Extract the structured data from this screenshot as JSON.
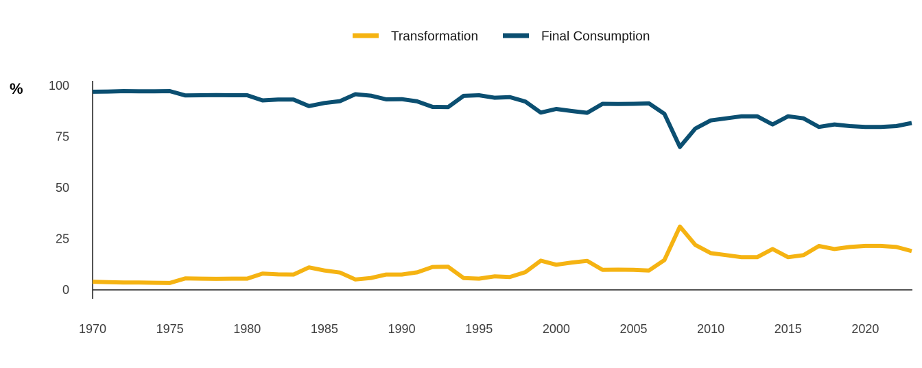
{
  "chart_data": {
    "type": "line",
    "title": "",
    "ylabel": "%",
    "xlabel": "",
    "ylim": [
      0,
      100
    ],
    "xlim": [
      1970,
      2023
    ],
    "grid": false,
    "legend_position": "top-center",
    "yticks": [
      0,
      25,
      50,
      75,
      100
    ],
    "xticks": [
      1970,
      1975,
      1980,
      1985,
      1990,
      1995,
      2000,
      2005,
      2010,
      2015,
      2020
    ],
    "x": [
      1970,
      1971,
      1972,
      1973,
      1974,
      1975,
      1976,
      1977,
      1978,
      1979,
      1980,
      1981,
      1982,
      1983,
      1984,
      1985,
      1986,
      1987,
      1988,
      1989,
      1990,
      1991,
      1992,
      1993,
      1994,
      1995,
      1996,
      1997,
      1998,
      1999,
      2000,
      2001,
      2002,
      2003,
      2004,
      2005,
      2006,
      2007,
      2008,
      2009,
      2010,
      2011,
      2012,
      2013,
      2014,
      2015,
      2016,
      2017,
      2018,
      2019,
      2020,
      2021,
      2022,
      2023
    ],
    "series": [
      {
        "name": "Transformation",
        "color": "#F5B312",
        "values": [
          4,
          3.8,
          3.6,
          3.6,
          3.5,
          3.4,
          5.6,
          5.5,
          5.4,
          5.5,
          5.5,
          8,
          7.6,
          7.5,
          11,
          9.5,
          8.5,
          5.1,
          5.8,
          7.5,
          7.5,
          8.6,
          11.2,
          11.3,
          5.8,
          5.5,
          6.6,
          6.3,
          8.7,
          14.3,
          12.3,
          13.4,
          14.2,
          9.8,
          9.9,
          9.8,
          9.5,
          14.6,
          31,
          22,
          18,
          17,
          16,
          16,
          20,
          16,
          17,
          21.5,
          20,
          21,
          21.5,
          21.5,
          21,
          19
        ]
      },
      {
        "name": "Final Consumption",
        "color": "#0B4F71",
        "values": [
          97,
          97.1,
          97.3,
          97.2,
          97.2,
          97.3,
          95.2,
          95.3,
          95.4,
          95.3,
          95.3,
          92.8,
          93.2,
          93.2,
          90,
          91.5,
          92.4,
          95.8,
          95.1,
          93.3,
          93.4,
          92.3,
          89.6,
          89.5,
          95,
          95.3,
          94.1,
          94.4,
          92.2,
          86.8,
          88.6,
          87.6,
          86.7,
          91.1,
          91,
          91.1,
          91.3,
          86.2,
          70,
          79,
          83,
          84,
          85,
          85,
          81,
          85,
          84,
          79.8,
          81,
          80.2,
          79.8,
          79.8,
          80.2,
          81.7
        ]
      }
    ]
  }
}
